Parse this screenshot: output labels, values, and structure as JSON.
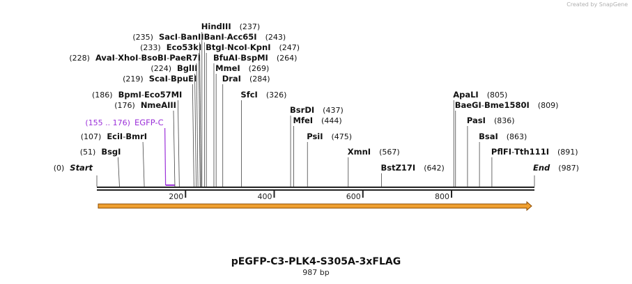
{
  "credit": "Created by SnapGene",
  "plasmid": {
    "name": "pEGFP-C3-PLK4-S305A-3xFLAG",
    "length_label": "987 bp",
    "length": 987
  },
  "axis": {
    "ticks": [
      {
        "value": 200,
        "label": "200"
      },
      {
        "value": 400,
        "label": "400"
      },
      {
        "value": 600,
        "label": "600"
      },
      {
        "value": 800,
        "label": "800"
      }
    ]
  },
  "sites": [
    {
      "pos": 0,
      "prefix": "(0)",
      "names": [
        "Start"
      ],
      "italic": true
    },
    {
      "pos": 51,
      "prefix": "(51)",
      "names": [
        "BsgI"
      ]
    },
    {
      "pos": 107,
      "prefix": "(107)",
      "names": [
        "EciI",
        "BmrI"
      ]
    },
    {
      "pos": 176,
      "prefix": "(176)",
      "names": [
        "NmeAIII"
      ]
    },
    {
      "pos": 186,
      "prefix": "(186)",
      "names": [
        "BpmI",
        "Eco57MI"
      ]
    },
    {
      "pos": 219,
      "prefix": "(219)",
      "names": [
        "ScaI",
        "BpuEI"
      ]
    },
    {
      "pos": 224,
      "prefix": "(224)",
      "names": [
        "BglII"
      ]
    },
    {
      "pos": 228,
      "prefix": "(228)",
      "names": [
        "AvaI",
        "XhoI",
        "BsoBI",
        "PaeR7I"
      ]
    },
    {
      "pos": 233,
      "prefix": "(233)",
      "names": [
        "Eco53kI"
      ]
    },
    {
      "pos": 235,
      "prefix": "(235)",
      "names": [
        "SacI",
        "BanII"
      ]
    },
    {
      "pos": 237,
      "suffix": "(237)",
      "names": [
        "HindIII"
      ]
    },
    {
      "pos": 243,
      "suffix": "(243)",
      "names": [
        "BanI",
        "Acc65I"
      ]
    },
    {
      "pos": 247,
      "suffix": "(247)",
      "names": [
        "BtgI",
        "NcoI",
        "KpnI"
      ]
    },
    {
      "pos": 264,
      "suffix": "(264)",
      "names": [
        "BfuAI",
        "BspMI"
      ]
    },
    {
      "pos": 269,
      "suffix": "(269)",
      "names": [
        "MmeI"
      ]
    },
    {
      "pos": 284,
      "suffix": "(284)",
      "names": [
        "DraI"
      ]
    },
    {
      "pos": 326,
      "suffix": "(326)",
      "names": [
        "SfcI"
      ]
    },
    {
      "pos": 437,
      "suffix": "(437)",
      "names": [
        "BsrDI"
      ]
    },
    {
      "pos": 444,
      "suffix": "(444)",
      "names": [
        "MfeI"
      ]
    },
    {
      "pos": 475,
      "suffix": "(475)",
      "names": [
        "PsiI"
      ]
    },
    {
      "pos": 567,
      "suffix": "(567)",
      "names": [
        "XmnI"
      ]
    },
    {
      "pos": 642,
      "suffix": "(642)",
      "names": [
        "BstZ17I"
      ]
    },
    {
      "pos": 805,
      "suffix": "(805)",
      "names": [
        "ApaLI"
      ]
    },
    {
      "pos": 809,
      "suffix": "(809)",
      "names": [
        "BaeGI",
        "Bme1580I"
      ]
    },
    {
      "pos": 836,
      "suffix": "(836)",
      "names": [
        "PasI"
      ]
    },
    {
      "pos": 863,
      "suffix": "(863)",
      "names": [
        "BsaI"
      ]
    },
    {
      "pos": 891,
      "suffix": "(891)",
      "names": [
        "PflFI",
        "Tth111I"
      ]
    },
    {
      "pos": 987,
      "suffix": "(987)",
      "names": [
        "End"
      ],
      "italic": true
    }
  ],
  "feature": {
    "name": "EGFP-C",
    "range_label": "(155 .. 176)",
    "start": 155,
    "end": 176,
    "color": "#9b30d9"
  },
  "orf_arrow": {
    "start": 1,
    "end": 987,
    "fill": "#f0a030",
    "stroke": "#8a4a00"
  }
}
